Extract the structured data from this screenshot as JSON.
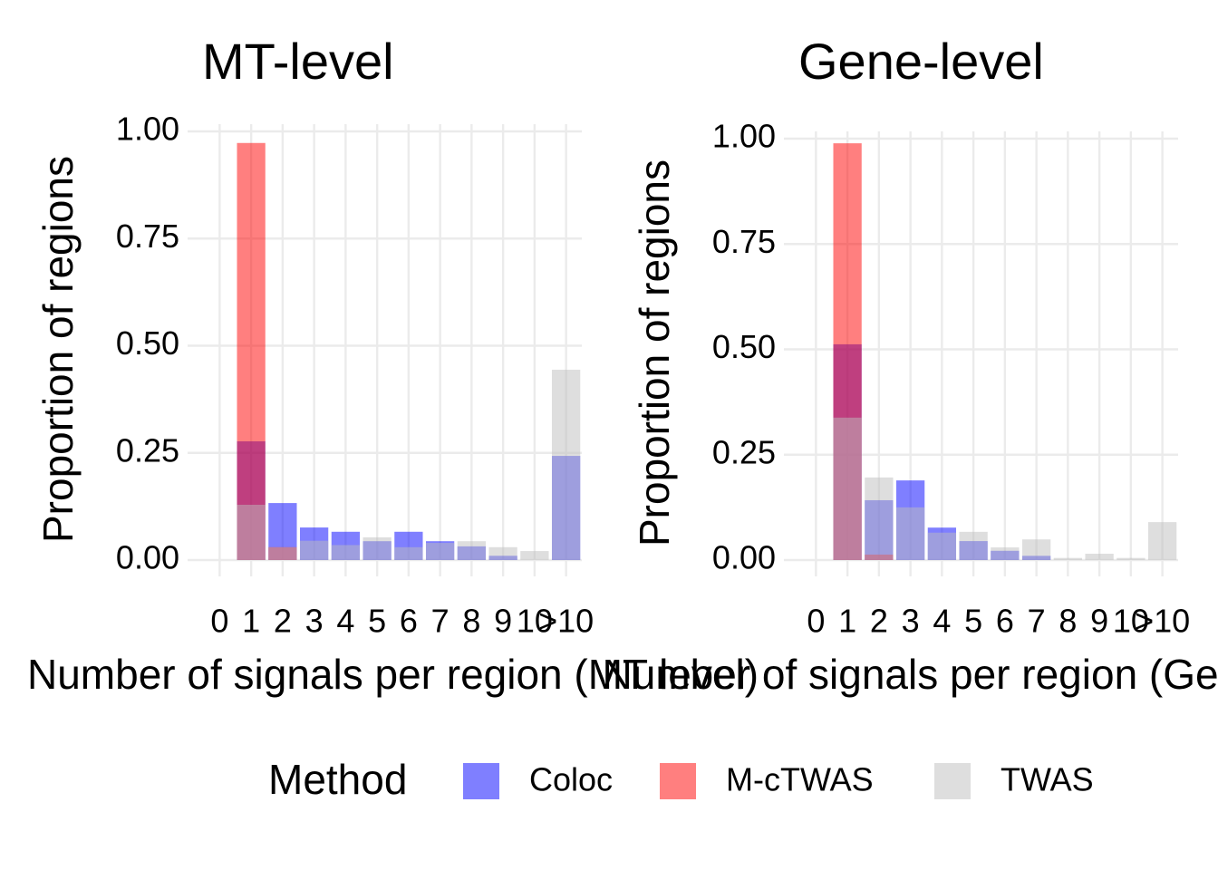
{
  "legend_title": "Method",
  "chart_data": [
    {
      "type": "bar",
      "title": "MT-level",
      "x_label": "Number of signals per region (MT level)",
      "y_label": "Proportion of regions",
      "categories": [
        "0",
        "1",
        "2",
        "3",
        "4",
        "5",
        "6",
        "7",
        "8",
        "9",
        "10",
        ">10"
      ],
      "ylim": [
        0,
        1
      ],
      "yticks": [
        {
          "value": 0,
          "label": "0.00"
        },
        0.25,
        {
          "value": 0.5,
          "label": "0.50"
        },
        0.75,
        {
          "value": 1,
          "label": "1.00"
        }
      ],
      "grid": true,
      "series": [
        {
          "name": "Coloc",
          "color": "#0000ff",
          "values": [
            0,
            0.277,
            0.133,
            0.076,
            0.066,
            0.044,
            0.066,
            0.044,
            0.032,
            0.01,
            0,
            0.243
          ]
        },
        {
          "name": "M-cTWAS",
          "color": "#ff0000",
          "values": [
            0,
            0.973,
            0.03,
            0,
            0,
            0,
            0,
            0,
            0,
            0,
            0,
            0
          ]
        },
        {
          "name": "TWAS",
          "color": "#bebebe",
          "values": [
            0,
            0.129,
            0.03,
            0.045,
            0.035,
            0.053,
            0.03,
            0.04,
            0.044,
            0.03,
            0.021,
            0.444
          ]
        }
      ]
    },
    {
      "type": "bar",
      "title": "Gene-level",
      "x_label": "Number of signals per region (Gene level)",
      "y_label": "Proportion of regions",
      "categories": [
        "0",
        "1",
        "2",
        "3",
        "4",
        "5",
        "6",
        "7",
        "8",
        "9",
        "10",
        ">10"
      ],
      "ylim": [
        0,
        1
      ],
      "yticks": [
        {
          "value": 0,
          "label": "0.00"
        },
        0.25,
        {
          "value": 0.5,
          "label": "0.50"
        },
        0.75,
        {
          "value": 1,
          "label": "1.00"
        }
      ],
      "grid": true,
      "series": [
        {
          "name": "Coloc",
          "color": "#0000ff",
          "values": [
            0,
            0.512,
            0.142,
            0.189,
            0.077,
            0.045,
            0.022,
            0.01,
            0,
            0,
            0,
            0
          ]
        },
        {
          "name": "M-cTWAS",
          "color": "#ff0000",
          "values": [
            0,
            0.989,
            0.013,
            0,
            0,
            0,
            0,
            0,
            0,
            0,
            0,
            0
          ]
        },
        {
          "name": "TWAS",
          "color": "#bebebe",
          "values": [
            0,
            0.338,
            0.196,
            0.125,
            0.065,
            0.067,
            0.03,
            0.049,
            0.005,
            0.015,
            0.005,
            0.09
          ]
        }
      ]
    }
  ]
}
